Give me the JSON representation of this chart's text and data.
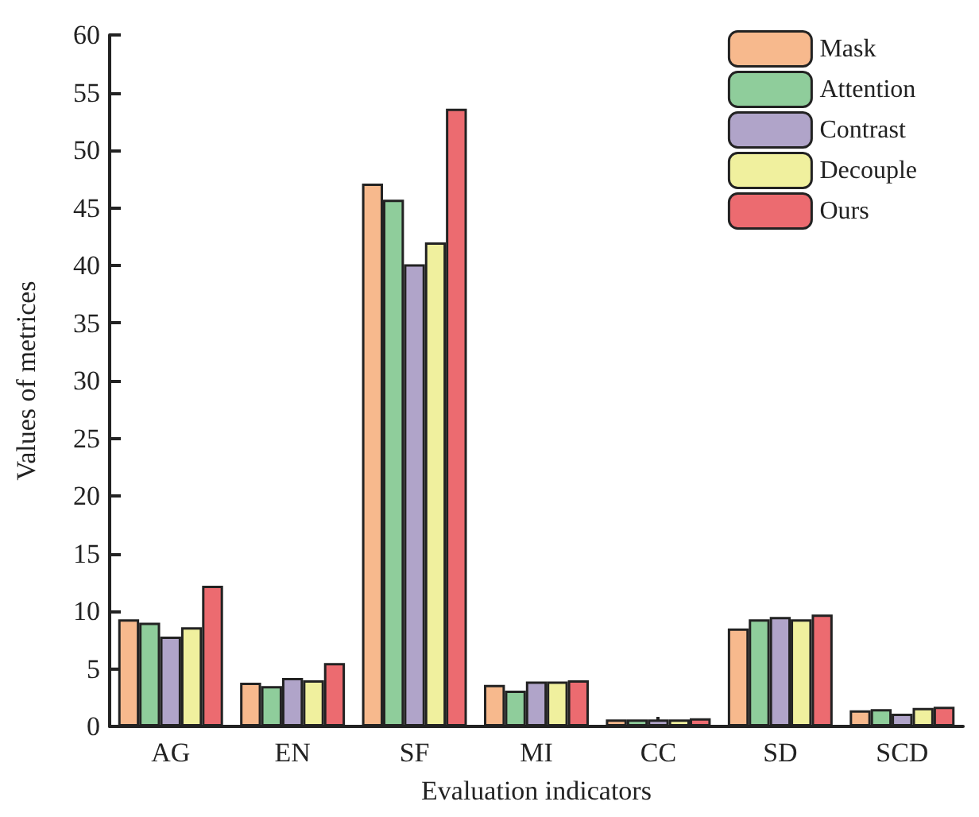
{
  "chart_data": {
    "type": "bar",
    "xlabel": "Evaluation indicators",
    "ylabel": "Values of metrices",
    "categories": [
      "AG",
      "EN",
      "SF",
      "MI",
      "CC",
      "SD",
      "SCD"
    ],
    "series": [
      {
        "name": "Mask",
        "color": "#f7b98d",
        "values": [
          9.3,
          3.8,
          47.1,
          3.6,
          0.6,
          8.5,
          1.4
        ]
      },
      {
        "name": "Attention",
        "color": "#8fcd9b",
        "values": [
          9.0,
          3.5,
          45.7,
          3.1,
          0.6,
          9.3,
          1.5
        ]
      },
      {
        "name": "Contrast",
        "color": "#b0a4c9",
        "values": [
          7.8,
          4.2,
          40.1,
          3.9,
          0.6,
          9.5,
          1.1
        ]
      },
      {
        "name": "Decouple",
        "color": "#f0f09e",
        "values": [
          8.6,
          4.0,
          42.0,
          3.9,
          0.6,
          9.3,
          1.6
        ]
      },
      {
        "name": "Ours",
        "color": "#ec6b70",
        "values": [
          12.2,
          5.5,
          53.6,
          4.0,
          0.7,
          9.7,
          1.7
        ]
      }
    ],
    "ylim": [
      0,
      60
    ],
    "yticks": [
      0,
      5,
      10,
      15,
      20,
      25,
      30,
      35,
      40,
      45,
      50,
      55,
      60
    ],
    "grid": false,
    "legend": "top right"
  }
}
